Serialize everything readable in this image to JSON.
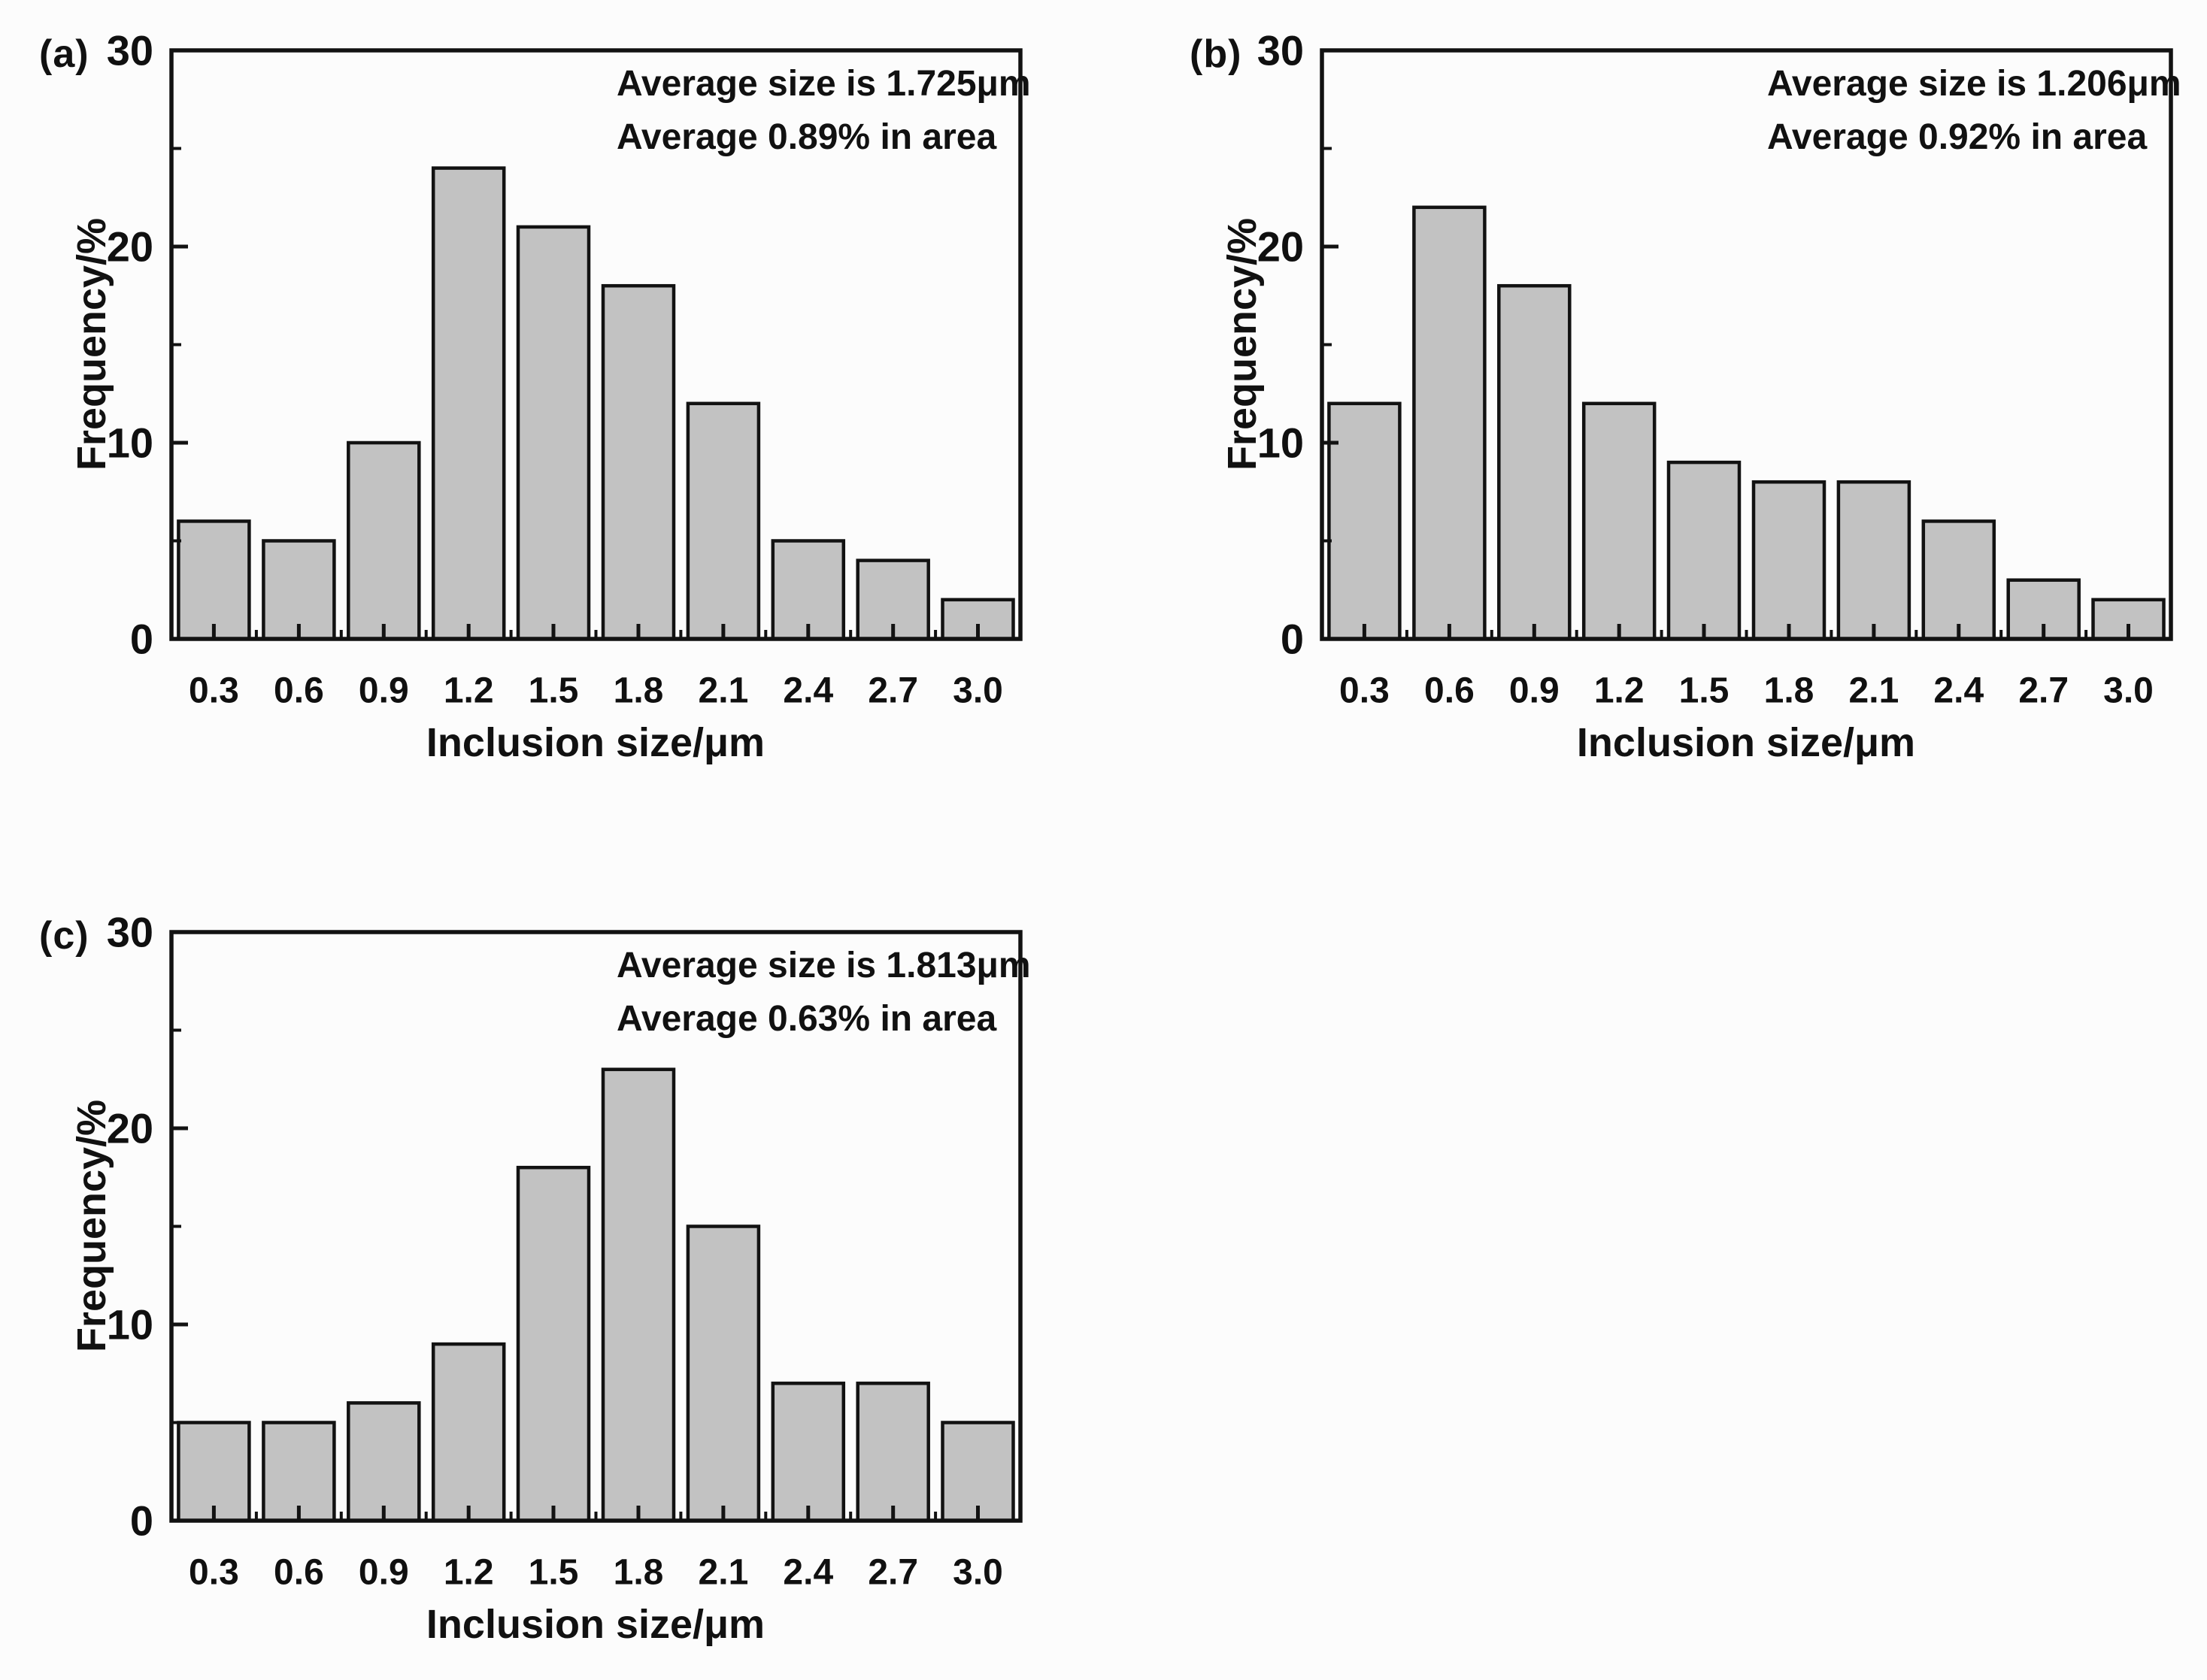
{
  "figure": {
    "description_colors": {
      "bar_fill": "#c2c2c2",
      "bar_stroke": "#121212",
      "axis": "#121212",
      "background": "#fcfcfc",
      "text": "#101010"
    }
  },
  "chart_data": [
    {
      "type": "bar",
      "panel_label": "(a)",
      "annotation": [
        "Average size is 1.725μm",
        "Average 0.89% in area"
      ],
      "categories": [
        "0.3",
        "0.6",
        "0.9",
        "1.2",
        "1.5",
        "1.8",
        "2.1",
        "2.4",
        "2.7",
        "3.0"
      ],
      "values": [
        6,
        5,
        10,
        24,
        21,
        18,
        12,
        5,
        4,
        2
      ],
      "xlabel": "Inclusion size/μm",
      "ylabel": "Frequency/%",
      "ylim": [
        0,
        30
      ],
      "y_major_ticks": [
        0,
        10,
        20,
        30
      ],
      "y_minor_ticks": [
        5,
        15,
        25
      ],
      "grid": false,
      "legend": "none"
    },
    {
      "type": "bar",
      "panel_label": "(b)",
      "annotation": [
        "Average size is 1.206μm",
        "Average 0.92% in area"
      ],
      "categories": [
        "0.3",
        "0.6",
        "0.9",
        "1.2",
        "1.5",
        "1.8",
        "2.1",
        "2.4",
        "2.7",
        "3.0"
      ],
      "values": [
        12,
        22,
        18,
        12,
        9,
        8,
        8,
        6,
        3,
        2
      ],
      "xlabel": "Inclusion size/μm",
      "ylabel": "Frequency/%",
      "ylim": [
        0,
        30
      ],
      "y_major_ticks": [
        0,
        10,
        20,
        30
      ],
      "y_minor_ticks": [
        5,
        15,
        25
      ],
      "grid": false,
      "legend": "none"
    },
    {
      "type": "bar",
      "panel_label": "(c)",
      "annotation": [
        "Average size is 1.813μm",
        "Average 0.63% in area"
      ],
      "categories": [
        "0.3",
        "0.6",
        "0.9",
        "1.2",
        "1.5",
        "1.8",
        "2.1",
        "2.4",
        "2.7",
        "3.0"
      ],
      "values": [
        5,
        5,
        6,
        9,
        18,
        23,
        15,
        7,
        7,
        5
      ],
      "xlabel": "Inclusion size/μm",
      "ylabel": "Frequency/%",
      "ylim": [
        0,
        30
      ],
      "y_major_ticks": [
        0,
        10,
        20,
        30
      ],
      "y_minor_ticks": [
        5,
        15,
        25
      ],
      "grid": false,
      "legend": "none"
    }
  ]
}
